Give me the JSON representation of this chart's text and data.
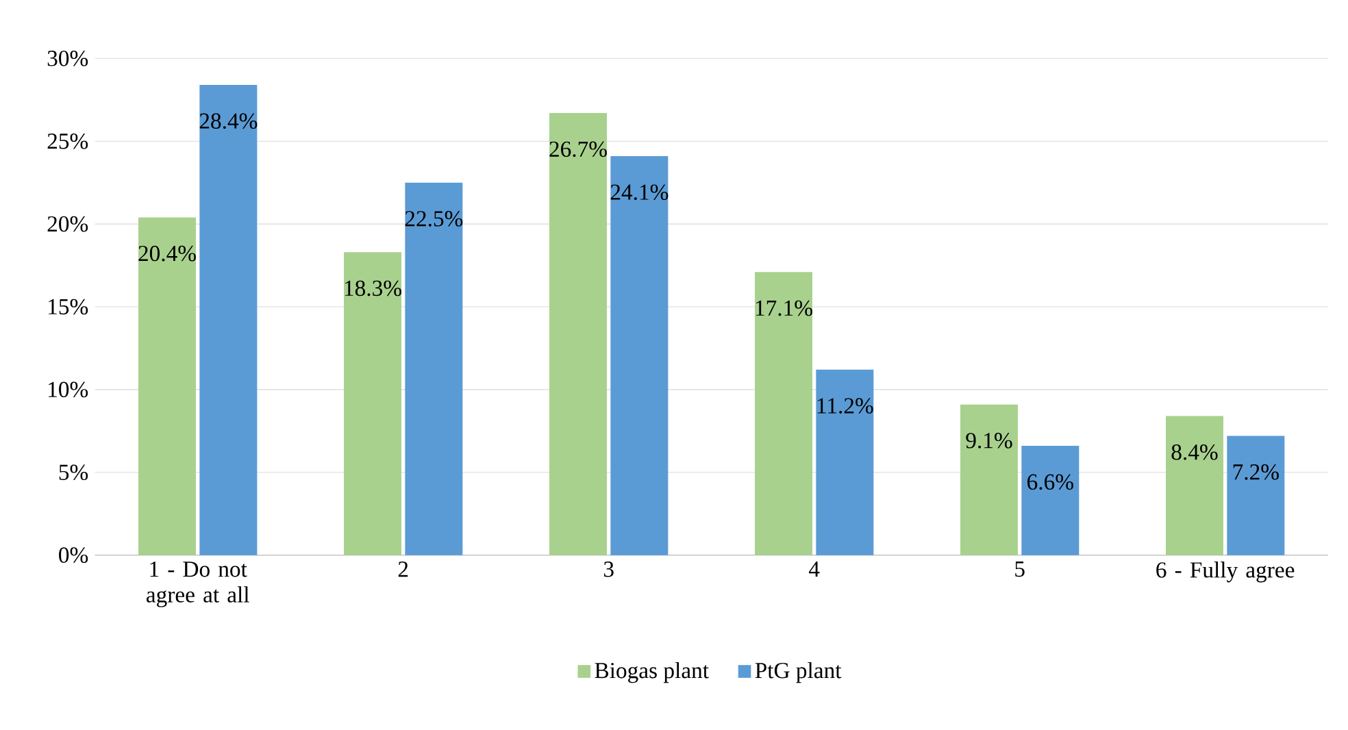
{
  "chart_data": {
    "type": "bar",
    "categories": [
      "1 - Do not agree at all",
      "2",
      "3",
      "4",
      "5",
      "6 - Fully agree"
    ],
    "series": [
      {
        "name": "Biogas plant",
        "color": "#a9d18e",
        "values": [
          20.4,
          18.3,
          26.7,
          17.1,
          9.1,
          8.4
        ],
        "value_labels": [
          "20.4%",
          "18.3%",
          "26.7%",
          "17.1%",
          "9.1%",
          "8.4%"
        ]
      },
      {
        "name": "PtG plant",
        "color": "#5b9bd5",
        "values": [
          28.4,
          22.5,
          24.1,
          11.2,
          6.6,
          7.2
        ],
        "value_labels": [
          "28.4%",
          "22.5%",
          "24.1%",
          "11.2%",
          "6.6%",
          "7.2%"
        ]
      }
    ],
    "ylim": [
      0,
      30
    ],
    "yticks": [
      {
        "value": 0,
        "label": "0%"
      },
      {
        "value": 5,
        "label": "5%"
      },
      {
        "value": 10,
        "label": "10%"
      },
      {
        "value": 15,
        "label": "15%"
      },
      {
        "value": 20,
        "label": "20%"
      },
      {
        "value": 25,
        "label": "25%"
      },
      {
        "value": 30,
        "label": "30%"
      }
    ],
    "grid": "y",
    "legend": "bottom"
  }
}
